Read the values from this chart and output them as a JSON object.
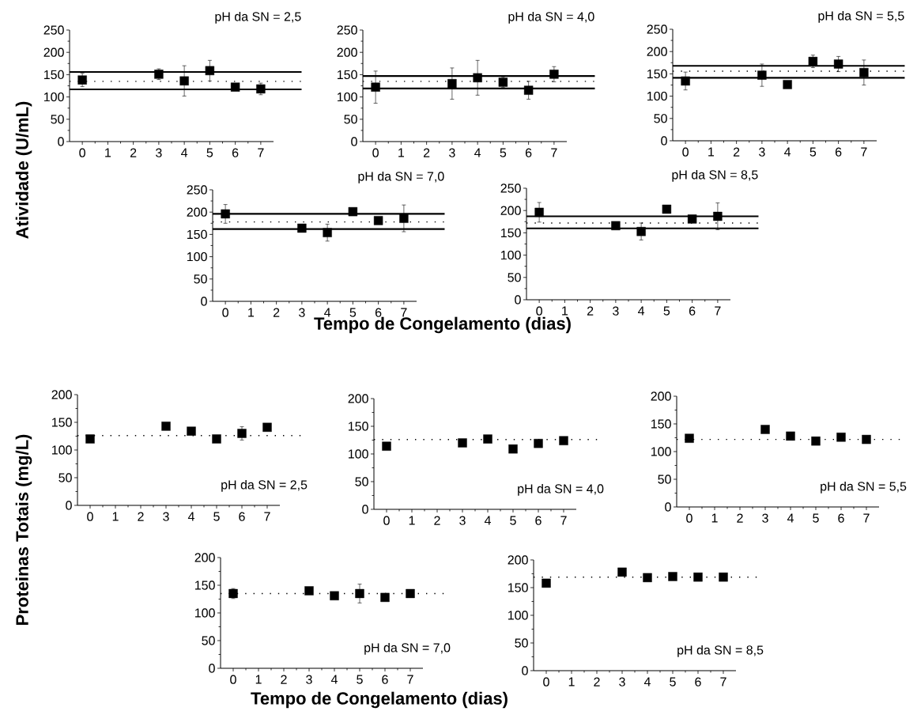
{
  "chart_data": [
    {
      "type": "scatter",
      "title": "pH da SN = 2,5",
      "ylabel": "Atividade (U/mL)",
      "x": [
        0,
        3,
        4,
        5,
        6,
        7
      ],
      "values": [
        138,
        151,
        136,
        159,
        122,
        118
      ],
      "errors": [
        15,
        12,
        34,
        23,
        4,
        13
      ],
      "color": "#000000",
      "marker": "square",
      "xlim": [
        -0.5,
        7.5
      ],
      "ylim": [
        0,
        250
      ],
      "xticks": [
        0,
        1,
        2,
        3,
        4,
        5,
        6,
        7
      ],
      "yticks": [
        0,
        50,
        100,
        150,
        200,
        250
      ],
      "ref_lines": [
        {
          "axis": "y",
          "value": 156,
          "line_style": "solid"
        },
        {
          "axis": "y",
          "value": 117,
          "line_style": "solid"
        },
        {
          "axis": "y",
          "value": 135,
          "line_style": "dotted"
        }
      ]
    },
    {
      "type": "scatter",
      "title": "pH da SN = 4,0",
      "x": [
        0,
        3,
        4,
        5,
        6,
        7
      ],
      "values": [
        122,
        130,
        143,
        133,
        115,
        151
      ],
      "errors": [
        36,
        35,
        39,
        12,
        20,
        17
      ],
      "color": "#000000",
      "marker": "square",
      "xlim": [
        -0.5,
        7.5
      ],
      "ylim": [
        0,
        250
      ],
      "xticks": [
        0,
        1,
        2,
        3,
        4,
        5,
        6,
        7
      ],
      "yticks": [
        0,
        50,
        100,
        150,
        200,
        250
      ],
      "ref_lines": [
        {
          "axis": "y",
          "value": 147,
          "line_style": "solid"
        },
        {
          "axis": "y",
          "value": 119,
          "line_style": "solid"
        },
        {
          "axis": "y",
          "value": 135,
          "line_style": "dotted"
        }
      ]
    },
    {
      "type": "scatter",
      "title": "pH da SN = 5,5",
      "x": [
        0,
        3,
        4,
        5,
        6,
        7
      ],
      "values": [
        134,
        147,
        126,
        178,
        172,
        153
      ],
      "errors": [
        20,
        25,
        null,
        14,
        17,
        28
      ],
      "color": "#000000",
      "marker": "square",
      "xlim": [
        -0.5,
        7.5
      ],
      "ylim": [
        0,
        250
      ],
      "xticks": [
        0,
        1,
        2,
        3,
        4,
        5,
        6,
        7
      ],
      "yticks": [
        0,
        50,
        100,
        150,
        200,
        250
      ],
      "ref_lines": [
        {
          "axis": "y",
          "value": 168,
          "line_style": "solid"
        },
        {
          "axis": "y",
          "value": 141,
          "line_style": "solid"
        },
        {
          "axis": "y",
          "value": 156,
          "line_style": "dotted"
        }
      ]
    },
    {
      "type": "scatter",
      "title": "pH da SN = 7,0",
      "xlabel": "Tempo de Congelamento (dias)",
      "x": [
        0,
        3,
        4,
        5,
        6,
        7
      ],
      "values": [
        196,
        164,
        154,
        201,
        181,
        186
      ],
      "errors": [
        21,
        5,
        19,
        6,
        null,
        30
      ],
      "color": "#000000",
      "marker": "square",
      "xlim": [
        -0.5,
        7.5
      ],
      "ylim": [
        0,
        250
      ],
      "xticks": [
        0,
        1,
        2,
        3,
        4,
        5,
        6,
        7
      ],
      "yticks": [
        0,
        50,
        100,
        150,
        200,
        250
      ],
      "ref_lines": [
        {
          "axis": "y",
          "value": 196,
          "line_style": "solid"
        },
        {
          "axis": "y",
          "value": 162,
          "line_style": "solid"
        },
        {
          "axis": "y",
          "value": 178,
          "line_style": "dotted"
        }
      ]
    },
    {
      "type": "scatter",
      "title": "pH da SN = 8,5",
      "x": [
        0,
        3,
        4,
        5,
        6,
        7
      ],
      "values": [
        196,
        166,
        153,
        203,
        181,
        187
      ],
      "errors": [
        22,
        5,
        19,
        6,
        null,
        30
      ],
      "color": "#000000",
      "marker": "square",
      "xlim": [
        -0.5,
        7.5
      ],
      "ylim": [
        0,
        250
      ],
      "xticks": [
        0,
        1,
        2,
        3,
        4,
        5,
        6,
        7
      ],
      "yticks": [
        0,
        50,
        100,
        150,
        200,
        250
      ],
      "ref_lines": [
        {
          "axis": "y",
          "value": 187,
          "line_style": "solid"
        },
        {
          "axis": "y",
          "value": 160,
          "line_style": "solid"
        },
        {
          "axis": "y",
          "value": 172,
          "line_style": "dotted"
        }
      ]
    },
    {
      "type": "scatter",
      "title": "pH da SN = 2,5",
      "ylabel": "Proteinas Totais (mg/L)",
      "x": [
        0,
        3,
        4,
        5,
        6,
        7
      ],
      "values": [
        120,
        143,
        134,
        120,
        130,
        141
      ],
      "errors": [
        6,
        null,
        null,
        null,
        12,
        null
      ],
      "color": "#000000",
      "marker": "square",
      "xlim": [
        -0.5,
        7.5
      ],
      "ylim": [
        0,
        200
      ],
      "xticks": [
        0,
        1,
        2,
        3,
        4,
        5,
        6,
        7
      ],
      "yticks": [
        0,
        50,
        100,
        150,
        200
      ],
      "ref_lines": [
        {
          "axis": "y",
          "value": 126,
          "line_style": "dotted"
        }
      ]
    },
    {
      "type": "scatter",
      "title": "pH da SN = 4,0",
      "x": [
        0,
        3,
        4,
        5,
        6,
        7
      ],
      "values": [
        114,
        120,
        127,
        109,
        119,
        124
      ],
      "color": "#000000",
      "marker": "square",
      "xlim": [
        -0.5,
        7.5
      ],
      "ylim": [
        0,
        200
      ],
      "xticks": [
        0,
        1,
        2,
        3,
        4,
        5,
        6,
        7
      ],
      "yticks": [
        0,
        50,
        100,
        150,
        200
      ],
      "ref_lines": [
        {
          "axis": "y",
          "value": 126,
          "line_style": "dotted"
        }
      ]
    },
    {
      "type": "scatter",
      "title": "pH da SN = 5,5",
      "x": [
        0,
        3,
        4,
        5,
        6,
        7
      ],
      "values": [
        124,
        140,
        128,
        119,
        126,
        122
      ],
      "color": "#000000",
      "marker": "square",
      "xlim": [
        -0.5,
        7.5
      ],
      "ylim": [
        0,
        200
      ],
      "xticks": [
        0,
        1,
        2,
        3,
        4,
        5,
        6,
        7
      ],
      "yticks": [
        0,
        50,
        100,
        150,
        200
      ],
      "ref_lines": [
        {
          "axis": "y",
          "value": 122,
          "line_style": "dotted"
        }
      ]
    },
    {
      "type": "scatter",
      "title": "pH da SN = 7,0",
      "xlabel": "Tempo de Congelamento (dias)",
      "x": [
        0,
        3,
        4,
        5,
        6,
        7
      ],
      "values": [
        135,
        140,
        131,
        135,
        128,
        135
      ],
      "errors": [
        9,
        null,
        null,
        17,
        null,
        null
      ],
      "color": "#000000",
      "marker": "square",
      "xlim": [
        -0.5,
        7.5
      ],
      "ylim": [
        0,
        200
      ],
      "xticks": [
        0,
        1,
        2,
        3,
        4,
        5,
        6,
        7
      ],
      "yticks": [
        0,
        50,
        100,
        150,
        200
      ],
      "ref_lines": [
        {
          "axis": "y",
          "value": 135,
          "line_style": "dotted"
        }
      ]
    },
    {
      "type": "scatter",
      "title": "pH da SN = 8,5",
      "x": [
        0,
        3,
        4,
        5,
        6,
        7
      ],
      "values": [
        158,
        178,
        168,
        170,
        169,
        169
      ],
      "color": "#000000",
      "marker": "square",
      "xlim": [
        -0.5,
        7.5
      ],
      "ylim": [
        0,
        200
      ],
      "xticks": [
        0,
        1,
        2,
        3,
        4,
        5,
        6,
        7
      ],
      "yticks": [
        0,
        50,
        100,
        150,
        200
      ],
      "ref_lines": [
        {
          "axis": "y",
          "value": 169,
          "line_style": "dotted"
        }
      ]
    }
  ]
}
